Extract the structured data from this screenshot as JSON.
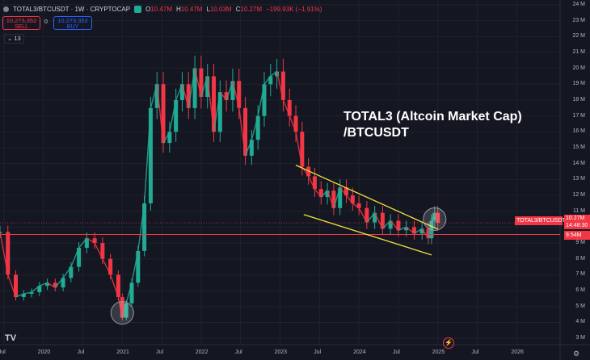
{
  "header": {
    "symbol_line": "TOTAL3/BTCUSDT · 1W · CRYPTOCAP",
    "o_label": "O",
    "o_value": "10.47M",
    "h_label": "H",
    "h_value": "10.47M",
    "l_label": "L",
    "l_value": "10.03M",
    "c_label": "C",
    "c_value": "10.27M",
    "change": "−199.93K (−1.91%)"
  },
  "trade": {
    "sell_price": "10,273,352",
    "sell_label": "SELL",
    "spread": "0",
    "buy_price": "10,273,352",
    "buy_label": "BUY"
  },
  "indicator_toggle": "13",
  "annotation": {
    "line1": "TOTAL3 (Altcoin Market Cap)",
    "line2": "/BTCUSDT"
  },
  "price_tags": {
    "symbol": "TOTAL3/BTCUSDT",
    "last_price": "10.27M",
    "countdown": "14:48:30",
    "level": "9.54M"
  },
  "colors": {
    "up": "#22ab94",
    "down": "#f23645",
    "channel": "#f5e33b",
    "background": "#141722"
  },
  "chart_data": {
    "type": "line",
    "title": "",
    "y_unit": "M",
    "ylim": [
      2.6,
      24.3
    ],
    "y_ticks": [
      "24 M",
      "23 M",
      "22 M",
      "21 M",
      "20 M",
      "19 M",
      "18 M",
      "17 M",
      "16 M",
      "15 M",
      "14 M",
      "13 M",
      "12 M",
      "11 M",
      "10 M",
      "9 M",
      "8 M",
      "7 M",
      "6 M",
      "5 M",
      "4 M",
      "3 M"
    ],
    "x_ticks": [
      "Jul",
      "2020",
      "Jul",
      "2021",
      "Jul",
      "2022",
      "Jul",
      "2023",
      "Jul",
      "2024",
      "Jul",
      "2025",
      "Jul",
      "2026"
    ],
    "x_tick_years": [
      2019.5,
      2020.0,
      2020.5,
      2021.0,
      2021.5,
      2022.0,
      2022.5,
      2023.0,
      2023.5,
      2024.0,
      2024.5,
      2025.0,
      2025.5,
      2026.0
    ],
    "x_range": [
      2019.45,
      2026.55
    ],
    "series": [
      {
        "x": [
          2019.45,
          2019.55,
          2019.65,
          2019.75,
          2019.85,
          2019.95,
          2020.05,
          2020.15,
          2020.25,
          2020.35,
          2020.45,
          2020.55,
          2020.65,
          2020.75,
          2020.85,
          2020.95,
          2021.0,
          2021.05,
          2021.12,
          2021.2,
          2021.28,
          2021.36,
          2021.44,
          2021.52,
          2021.6,
          2021.68,
          2021.76,
          2021.84,
          2021.92,
          2022.0,
          2022.08,
          2022.16,
          2022.24,
          2022.32,
          2022.4,
          2022.48,
          2022.56,
          2022.64,
          2022.72,
          2022.8,
          2022.88,
          2022.96,
          2023.04,
          2023.12,
          2023.2,
          2023.28,
          2023.36,
          2023.44,
          2023.52,
          2023.6,
          2023.68,
          2023.76,
          2023.84,
          2023.92,
          2024.0,
          2024.1,
          2024.2,
          2024.3,
          2024.4,
          2024.5,
          2024.6,
          2024.7,
          2024.8,
          2024.88,
          2024.92,
          2024.96,
          2025.0
        ],
        "y": [
          9.7,
          7.0,
          5.6,
          5.8,
          5.9,
          6.3,
          6.5,
          6.2,
          6.8,
          7.5,
          8.7,
          9.3,
          9.0,
          8.0,
          7.0,
          5.6,
          4.3,
          5.2,
          6.5,
          8.5,
          11.5,
          17.5,
          19.0,
          15.3,
          16.0,
          18.0,
          19.0,
          17.5,
          20.0,
          18.2,
          19.5,
          16.0,
          18.5,
          18.0,
          19.2,
          17.5,
          14.5,
          15.5,
          17.0,
          19.0,
          19.5,
          19.8,
          18.0,
          17.0,
          16.0,
          13.8,
          13.2,
          12.4,
          11.9,
          12.3,
          11.2,
          12.5,
          12.0,
          11.5,
          11.2,
          10.3,
          10.9,
          9.9,
          10.4,
          9.8,
          10.0,
          9.6,
          9.9,
          9.3,
          10.4,
          10.9,
          10.27
        ]
      }
    ],
    "horizontal_level": 9.54,
    "channel_upper": [
      [
        2023.2,
        13.9
      ],
      [
        2025.0,
        9.87
      ]
    ],
    "channel_lower": [
      [
        2023.3,
        10.79
      ],
      [
        2024.92,
        8.25
      ]
    ],
    "circled_points": [
      [
        2021.0,
        4.6
      ],
      [
        2024.96,
        10.5
      ]
    ]
  }
}
